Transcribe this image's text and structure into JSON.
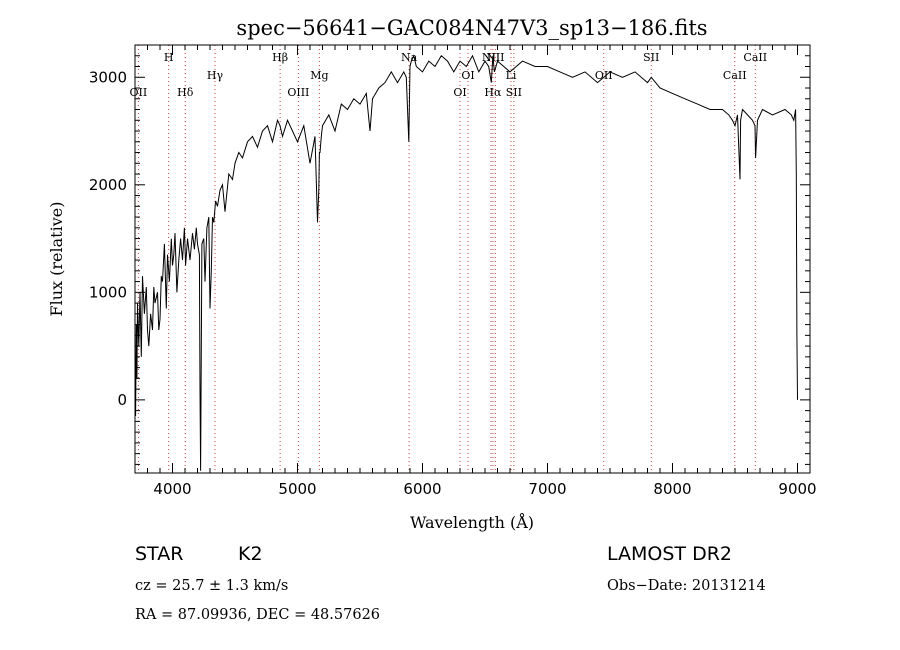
{
  "chart_data": {
    "type": "line",
    "title": "spec−56641−GAC084N47V3_sp13−186.fits",
    "xlabel": "Wavelength (Å)",
    "ylabel": "Flux (relative)",
    "xlim": [
      3700,
      9100
    ],
    "ylim": [
      -680,
      3300
    ],
    "x_ticks": [
      {
        "value": 4000,
        "label": "4000"
      },
      {
        "value": 5000,
        "label": "5000"
      },
      {
        "value": 6000,
        "label": "6000"
      },
      {
        "value": 7000,
        "label": "7000"
      },
      {
        "value": 8000,
        "label": "8000"
      },
      {
        "value": 9000,
        "label": "9000"
      }
    ],
    "y_ticks": [
      {
        "value": 0,
        "label": "0"
      },
      {
        "value": 1000,
        "label": "1000"
      },
      {
        "value": 2000,
        "label": "2000"
      },
      {
        "value": 3000,
        "label": "3000"
      }
    ],
    "grid": false,
    "series": [
      {
        "x": [
          3700,
          3705,
          3710,
          3715,
          3720,
          3730,
          3740,
          3750,
          3760,
          3775,
          3790,
          3800,
          3810,
          3825,
          3840,
          3850,
          3860,
          3880,
          3890,
          3900,
          3910,
          3920,
          3935,
          3950,
          3960,
          3975,
          3990,
          4000,
          4010,
          4020,
          4035,
          4050,
          4065,
          4080,
          4095,
          4105,
          4120,
          4140,
          4160,
          4175,
          4190,
          4200,
          4215,
          4220,
          4225,
          4235,
          4250,
          4260,
          4275,
          4290,
          4300,
          4310,
          4320,
          4330,
          4345,
          4360,
          4380,
          4400,
          4420,
          4450,
          4480,
          4500,
          4530,
          4560,
          4600,
          4640,
          4680,
          4720,
          4760,
          4800,
          4840,
          4860,
          4880,
          4920,
          4960,
          5000,
          5050,
          5100,
          5140,
          5160,
          5170,
          5175,
          5180,
          5190,
          5200,
          5250,
          5300,
          5350,
          5400,
          5450,
          5500,
          5550,
          5580,
          5600,
          5650,
          5700,
          5750,
          5800,
          5850,
          5870,
          5890,
          5900,
          5910,
          5930,
          5950,
          6000,
          6050,
          6100,
          6150,
          6200,
          6250,
          6300,
          6350,
          6400,
          6450,
          6500,
          6530,
          6550,
          6563,
          6575,
          6600,
          6650,
          6700,
          6800,
          6900,
          7000,
          7100,
          7200,
          7300,
          7400,
          7450,
          7500,
          7600,
          7700,
          7800,
          7830,
          7900,
          8000,
          8100,
          8200,
          8300,
          8400,
          8450,
          8480,
          8500,
          8520,
          8540,
          8545,
          8560,
          8600,
          8640,
          8660,
          8665,
          8680,
          8720,
          8800,
          8900,
          8950,
          8970,
          8985,
          8990,
          8995,
          9000
        ],
        "y": [
          150,
          -150,
          700,
          200,
          900,
          500,
          1000,
          400,
          1150,
          800,
          1050,
          650,
          500,
          800,
          650,
          1050,
          900,
          1000,
          650,
          750,
          1150,
          1100,
          1450,
          850,
          1350,
          1100,
          1500,
          1250,
          1350,
          1550,
          1000,
          1300,
          1500,
          1300,
          1600,
          1250,
          1500,
          1300,
          1550,
          1400,
          1600,
          1450,
          1350,
          100,
          -660,
          1450,
          1500,
          1100,
          1600,
          1700,
          850,
          1200,
          1700,
          1650,
          1850,
          1800,
          1950,
          2000,
          1750,
          2100,
          2050,
          2200,
          2300,
          2250,
          2400,
          2450,
          2350,
          2500,
          2550,
          2400,
          2600,
          2550,
          2450,
          2600,
          2500,
          2400,
          2550,
          2200,
          2450,
          1650,
          1950,
          2300,
          2300,
          2450,
          2550,
          2650,
          2500,
          2750,
          2700,
          2800,
          2750,
          2850,
          2500,
          2800,
          2900,
          2950,
          3050,
          2950,
          3050,
          3000,
          2400,
          3100,
          3150,
          3200,
          3100,
          3050,
          3150,
          3100,
          3200,
          3150,
          3050,
          3150,
          3100,
          3200,
          3050,
          3150,
          3100,
          2950,
          3200,
          3050,
          3150,
          3100,
          3050,
          3150,
          3100,
          3100,
          3050,
          3000,
          3050,
          2950,
          3000,
          3050,
          3000,
          3050,
          2950,
          3000,
          2900,
          2850,
          2800,
          2750,
          2700,
          2700,
          2650,
          2600,
          2550,
          2650,
          2050,
          2600,
          2700,
          2650,
          2600,
          2550,
          2250,
          2600,
          2700,
          2650,
          2700,
          2650,
          2600,
          2700,
          2100,
          600,
          0
        ]
      }
    ],
    "spectral_lines": [
      {
        "wavelength": 3727,
        "label": "OII",
        "row": 2
      },
      {
        "wavelength": 3969,
        "label": "H",
        "row": 0
      },
      {
        "wavelength": 4102,
        "label": "Hδ",
        "row": 2
      },
      {
        "wavelength": 4340,
        "label": "Hγ",
        "row": 1
      },
      {
        "wavelength": 4861,
        "label": "Hβ",
        "row": 0
      },
      {
        "wavelength": 5007,
        "label": "OIII",
        "row": 2
      },
      {
        "wavelength": 5175,
        "label": "Mg",
        "row": 1
      },
      {
        "wavelength": 5893,
        "label": "Na",
        "row": 0
      },
      {
        "wavelength": 6300,
        "label": "OI",
        "row": 2
      },
      {
        "wavelength": 6364,
        "label": "OI",
        "row": 1
      },
      {
        "wavelength": 6548,
        "label": "NII",
        "row": 0
      },
      {
        "wavelength": 6563,
        "label": "Hα",
        "row": 2
      },
      {
        "wavelength": 6583,
        "label": "NII",
        "row": 0
      },
      {
        "wavelength": 6708,
        "label": "Li",
        "row": 1
      },
      {
        "wavelength": 6731,
        "label": "SII",
        "row": 2
      },
      {
        "wavelength": 7450,
        "label": "OII",
        "row": 1
      },
      {
        "wavelength": 7830,
        "label": "SII",
        "row": 0
      },
      {
        "wavelength": 8498,
        "label": "CaII",
        "row": 1
      },
      {
        "wavelength": 8662,
        "label": "CaII",
        "row": 0
      }
    ]
  },
  "info": {
    "class_label": "STAR",
    "subclass": "K2",
    "survey": "LAMOST DR2",
    "redshift": "cz = 25.7 ± 1.3 km/s",
    "obs_date": "Obs−Date: 20131214",
    "coordinates": "RA =  87.09936, DEC =  48.57626"
  }
}
